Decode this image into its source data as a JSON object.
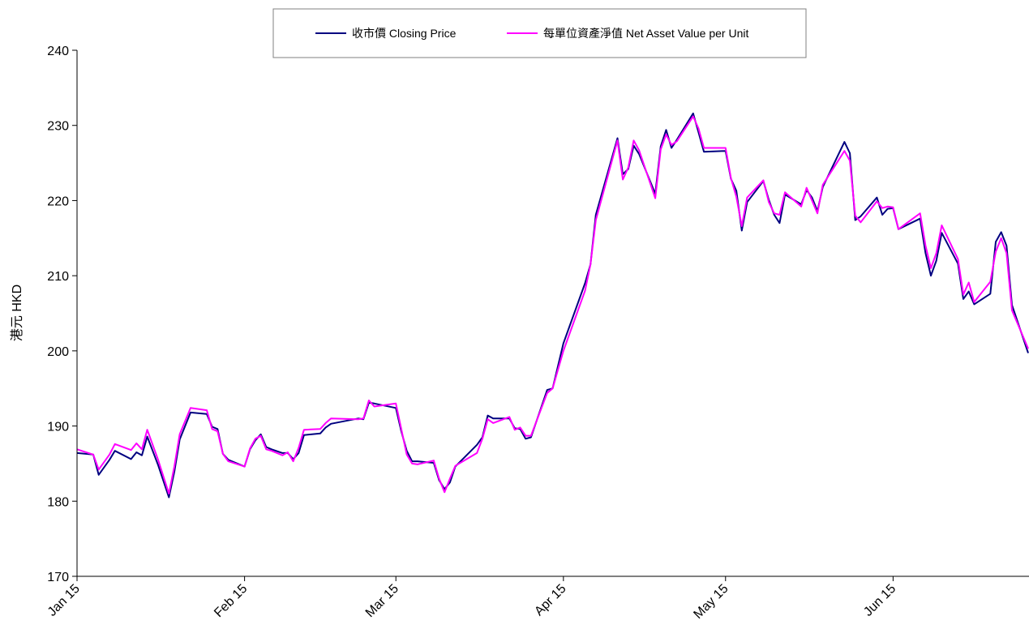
{
  "chart_data": {
    "type": "line",
    "ylabel": "港元 HKD",
    "xlabel": "",
    "ylim": [
      170,
      240
    ],
    "yticks": [
      170,
      180,
      190,
      200,
      210,
      220,
      230,
      240
    ],
    "x_range_days": [
      0,
      171
    ],
    "xticks": [
      {
        "label": "Jan 15",
        "day": 0
      },
      {
        "label": "Feb 15",
        "day": 31
      },
      {
        "label": "Mar 15",
        "day": 59
      },
      {
        "label": "Apr 15",
        "day": 90
      },
      {
        "label": "May 15",
        "day": 120
      },
      {
        "label": "Jun 15",
        "day": 151
      }
    ],
    "legend": {
      "position": "top-center"
    },
    "series": [
      {
        "name": "收市價 Closing Price",
        "color": "#000080",
        "points": [
          [
            0,
            186.4
          ],
          [
            3,
            186.2
          ],
          [
            4,
            183.5
          ],
          [
            6,
            185.5
          ],
          [
            7,
            186.7
          ],
          [
            10,
            185.6
          ],
          [
            11,
            186.5
          ],
          [
            12,
            186.1
          ],
          [
            13,
            188.6
          ],
          [
            15,
            184.8
          ],
          [
            17,
            180.5
          ],
          [
            18,
            183.9
          ],
          [
            19,
            188.2
          ],
          [
            21,
            191.8
          ],
          [
            24,
            191.6
          ],
          [
            25,
            189.9
          ],
          [
            26,
            189.6
          ],
          [
            27,
            186.3
          ],
          [
            28,
            185.5
          ],
          [
            31,
            184.6
          ],
          [
            32,
            186.9
          ],
          [
            33,
            188.1
          ],
          [
            34,
            188.9
          ],
          [
            35,
            187.2
          ],
          [
            36,
            186.9
          ],
          [
            38,
            186.4
          ],
          [
            39,
            186.4
          ],
          [
            40,
            185.6
          ],
          [
            41,
            186.4
          ],
          [
            42,
            188.8
          ],
          [
            45,
            189.0
          ],
          [
            46,
            189.8
          ],
          [
            47,
            190.3
          ],
          [
            52,
            191.0
          ],
          [
            53,
            190.9
          ],
          [
            54,
            193.1
          ],
          [
            55,
            193.0
          ],
          [
            59,
            192.4
          ],
          [
            60,
            189.3
          ],
          [
            61,
            186.7
          ],
          [
            62,
            185.3
          ],
          [
            63,
            185.3
          ],
          [
            66,
            185.1
          ],
          [
            67,
            182.8
          ],
          [
            68,
            181.6
          ],
          [
            69,
            182.5
          ],
          [
            70,
            184.6
          ],
          [
            74,
            187.5
          ],
          [
            75,
            188.5
          ],
          [
            76,
            191.4
          ],
          [
            77,
            191.0
          ],
          [
            80,
            191.0
          ],
          [
            81,
            189.7
          ],
          [
            82,
            189.6
          ],
          [
            83,
            188.3
          ],
          [
            84,
            188.5
          ],
          [
            87,
            194.8
          ],
          [
            88,
            195.0
          ],
          [
            90,
            201.0
          ],
          [
            94,
            209.0
          ],
          [
            95,
            211.5
          ],
          [
            96,
            218.1
          ],
          [
            100,
            228.3
          ],
          [
            101,
            223.5
          ],
          [
            102,
            224.2
          ],
          [
            103,
            227.3
          ],
          [
            104,
            226.2
          ],
          [
            107,
            220.9
          ],
          [
            108,
            227.2
          ],
          [
            109,
            229.4
          ],
          [
            110,
            227.0
          ],
          [
            111,
            228.1
          ],
          [
            114,
            231.6
          ],
          [
            115,
            229.1
          ],
          [
            116,
            226.5
          ],
          [
            120,
            226.6
          ],
          [
            121,
            222.9
          ],
          [
            122,
            221.3
          ],
          [
            123,
            216.0
          ],
          [
            124,
            219.8
          ],
          [
            127,
            222.6
          ],
          [
            128,
            220.1
          ],
          [
            129,
            218.1
          ],
          [
            130,
            217.0
          ],
          [
            131,
            220.8
          ],
          [
            134,
            219.5
          ],
          [
            135,
            221.4
          ],
          [
            136,
            220.4
          ],
          [
            137,
            218.6
          ],
          [
            138,
            221.8
          ],
          [
            142,
            227.8
          ],
          [
            143,
            226.3
          ],
          [
            144,
            217.4
          ],
          [
            145,
            217.9
          ],
          [
            148,
            220.4
          ],
          [
            149,
            218.1
          ],
          [
            150,
            218.9
          ],
          [
            151,
            219.0
          ],
          [
            152,
            216.2
          ],
          [
            156,
            217.6
          ],
          [
            157,
            213.0
          ],
          [
            158,
            210.0
          ],
          [
            159,
            212.0
          ],
          [
            160,
            215.7
          ],
          [
            163,
            211.6
          ],
          [
            164,
            206.9
          ],
          [
            165,
            207.9
          ],
          [
            166,
            206.2
          ],
          [
            169,
            207.6
          ],
          [
            170,
            214.5
          ],
          [
            171,
            215.8
          ],
          [
            172,
            214.0
          ],
          [
            173,
            206.1
          ],
          [
            176,
            199.7
          ]
        ]
      },
      {
        "name": "每單位資產淨值 Net Asset Value per Unit",
        "color": "#ff00ff",
        "points": [
          [
            0,
            186.9
          ],
          [
            3,
            186.2
          ],
          [
            4,
            184.2
          ],
          [
            6,
            186.2
          ],
          [
            7,
            187.6
          ],
          [
            10,
            186.8
          ],
          [
            11,
            187.7
          ],
          [
            12,
            186.9
          ],
          [
            13,
            189.5
          ],
          [
            15,
            185.5
          ],
          [
            17,
            181.0
          ],
          [
            18,
            184.6
          ],
          [
            19,
            188.9
          ],
          [
            21,
            192.4
          ],
          [
            24,
            192.1
          ],
          [
            25,
            189.6
          ],
          [
            26,
            189.3
          ],
          [
            27,
            186.3
          ],
          [
            28,
            185.3
          ],
          [
            31,
            184.6
          ],
          [
            32,
            187.0
          ],
          [
            33,
            188.3
          ],
          [
            34,
            188.7
          ],
          [
            35,
            186.9
          ],
          [
            36,
            186.7
          ],
          [
            38,
            186.1
          ],
          [
            39,
            186.5
          ],
          [
            40,
            185.3
          ],
          [
            41,
            187.1
          ],
          [
            42,
            189.5
          ],
          [
            45,
            189.6
          ],
          [
            46,
            190.4
          ],
          [
            47,
            191.0
          ],
          [
            52,
            190.9
          ],
          [
            53,
            191.0
          ],
          [
            54,
            193.4
          ],
          [
            55,
            192.6
          ],
          [
            59,
            193.0
          ],
          [
            60,
            189.6
          ],
          [
            61,
            186.2
          ],
          [
            62,
            185.0
          ],
          [
            63,
            184.9
          ],
          [
            66,
            185.4
          ],
          [
            67,
            183.0
          ],
          [
            68,
            181.2
          ],
          [
            69,
            183.0
          ],
          [
            70,
            184.7
          ],
          [
            74,
            186.4
          ],
          [
            75,
            188.3
          ],
          [
            76,
            190.9
          ],
          [
            77,
            190.4
          ],
          [
            80,
            191.2
          ],
          [
            81,
            189.5
          ],
          [
            82,
            189.8
          ],
          [
            83,
            188.7
          ],
          [
            84,
            188.7
          ],
          [
            87,
            194.4
          ],
          [
            88,
            195.0
          ],
          [
            90,
            200.0
          ],
          [
            94,
            208.0
          ],
          [
            95,
            211.5
          ],
          [
            96,
            217.4
          ],
          [
            100,
            228.0
          ],
          [
            101,
            222.8
          ],
          [
            102,
            224.4
          ],
          [
            103,
            228.0
          ],
          [
            104,
            226.7
          ],
          [
            107,
            220.3
          ],
          [
            108,
            226.8
          ],
          [
            109,
            228.8
          ],
          [
            110,
            227.4
          ],
          [
            111,
            227.9
          ],
          [
            114,
            231.2
          ],
          [
            115,
            229.6
          ],
          [
            116,
            227.0
          ],
          [
            120,
            227.0
          ],
          [
            121,
            223.0
          ],
          [
            122,
            220.5
          ],
          [
            123,
            216.6
          ],
          [
            124,
            220.4
          ],
          [
            127,
            222.7
          ],
          [
            128,
            219.8
          ],
          [
            129,
            218.3
          ],
          [
            130,
            218.1
          ],
          [
            131,
            221.1
          ],
          [
            134,
            219.2
          ],
          [
            135,
            221.7
          ],
          [
            136,
            220.0
          ],
          [
            137,
            218.3
          ],
          [
            138,
            222.1
          ],
          [
            142,
            226.6
          ],
          [
            143,
            225.3
          ],
          [
            144,
            218.0
          ],
          [
            145,
            217.1
          ],
          [
            148,
            219.9
          ],
          [
            149,
            219.0
          ],
          [
            150,
            219.2
          ],
          [
            151,
            219.1
          ],
          [
            152,
            216.2
          ],
          [
            156,
            218.3
          ],
          [
            157,
            214.0
          ],
          [
            158,
            211.0
          ],
          [
            159,
            213.0
          ],
          [
            160,
            216.7
          ],
          [
            163,
            212.2
          ],
          [
            164,
            207.5
          ],
          [
            165,
            209.1
          ],
          [
            166,
            206.5
          ],
          [
            169,
            209.2
          ],
          [
            170,
            213.2
          ],
          [
            171,
            215.0
          ],
          [
            172,
            213.0
          ],
          [
            173,
            205.4
          ],
          [
            176,
            200.3
          ]
        ]
      }
    ]
  }
}
